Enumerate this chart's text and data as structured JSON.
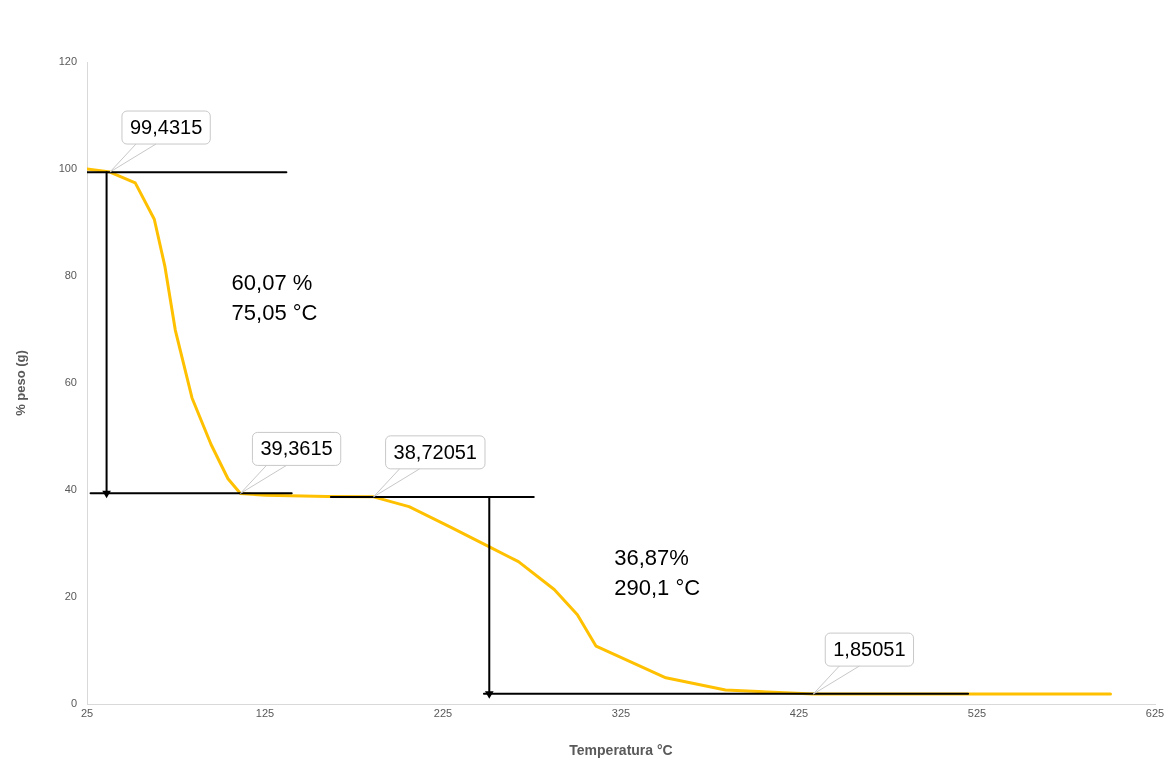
{
  "chart_data": {
    "type": "line",
    "xlabel": "Temperatura °C",
    "ylabel": "% peso (g)",
    "xlim": [
      25,
      625
    ],
    "xticks": [
      25,
      125,
      225,
      325,
      425,
      525,
      625
    ],
    "ylim": [
      0,
      120
    ],
    "yticks": [
      0,
      20,
      40,
      60,
      80,
      100,
      120
    ],
    "grid": false,
    "legend": false,
    "marker": "none",
    "series": [
      {
        "color": "#ffc000",
        "x": [
          25,
          37.9,
          52.1,
          62.8,
          68.7,
          74.6,
          84.0,
          94.7,
          104.2,
          111.2,
          125.4,
          160,
          186,
          205.9,
          229.5,
          250.8,
          267.4,
          287.5,
          300.5,
          311,
          350.2,
          383.7,
          433,
          600
        ],
        "values": [
          100.0,
          99.4315,
          97.4,
          90.6,
          81.9,
          69.9,
          57.2,
          48.5,
          42.1,
          39.3615,
          39.0,
          38.8,
          38.72051,
          36.9,
          33.0,
          29.4,
          26.6,
          21.4,
          16.7,
          10.8,
          4.9,
          2.6,
          1.85051,
          1.85
        ],
        "value_labels": [
          null,
          "99,4315",
          null,
          null,
          null,
          null,
          null,
          null,
          null,
          "39,3615",
          null,
          null,
          "38,72051",
          null,
          null,
          null,
          null,
          null,
          null,
          null,
          null,
          null,
          "1,85051",
          null
        ]
      },
      {
        "color": "#000000",
        "x": [
          25,
          137
        ],
        "values": [
          99.4,
          99.4
        ]
      },
      {
        "color": "#000000",
        "x": [
          27,
          140
        ],
        "values": [
          39.4,
          39.4
        ]
      },
      {
        "color": "#000000",
        "x": [
          162,
          276
        ],
        "values": [
          38.7,
          38.7
        ]
      },
      {
        "color": "#000000",
        "x": [
          248,
          520
        ],
        "values": [
          1.9,
          1.9
        ]
      },
      {
        "color": "#000000",
        "x": [
          36,
          36
        ],
        "values": [
          99.4,
          39.4
        ],
        "marker": "triangle"
      },
      {
        "color": "#000000",
        "x": [
          251,
          251
        ],
        "values": [
          38.7,
          1.9
        ],
        "marker": "triangle"
      }
    ],
    "annotations": [
      "60,07 %\n75,05 °C",
      "36,87%\n290,1 °C"
    ]
  }
}
